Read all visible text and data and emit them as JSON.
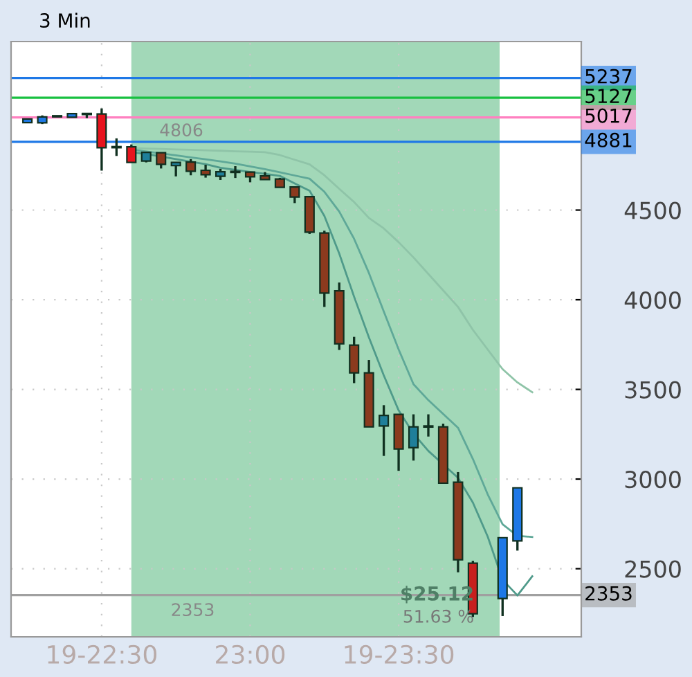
{
  "chart_data": {
    "type": "candlestick",
    "title": "3 Min",
    "categories": [
      null,
      null,
      null,
      null,
      null,
      "19-22:30",
      null,
      null,
      null,
      null,
      null,
      null,
      null,
      null,
      null,
      "23:00",
      null,
      null,
      null,
      null,
      null,
      null,
      null,
      null,
      null,
      "19-23:30",
      null,
      null,
      null,
      null,
      null,
      null,
      null,
      null,
      null
    ],
    "ohlc": [
      [
        4988,
        5010,
        4985,
        5008
      ],
      [
        4987,
        5028,
        4980,
        5020
      ],
      [
        5020,
        5027,
        5020,
        5025
      ],
      [
        5018,
        5040,
        5016,
        5038
      ],
      [
        5038,
        5040,
        5013,
        5033
      ],
      [
        5036,
        5067,
        4720,
        4848
      ],
      [
        4848,
        4900,
        4802,
        4853
      ],
      [
        4853,
        4866,
        4766,
        4766
      ],
      [
        4774,
        4822,
        4766,
        4822
      ],
      [
        4820,
        4822,
        4732,
        4755
      ],
      [
        4748,
        4768,
        4688,
        4766
      ],
      [
        4768,
        4784,
        4694,
        4717
      ],
      [
        4722,
        4753,
        4681,
        4697
      ],
      [
        4689,
        4730,
        4668,
        4714
      ],
      [
        4714,
        4745,
        4679,
        4710
      ],
      [
        4712,
        4712,
        4655,
        4686
      ],
      [
        4691,
        4712,
        4670,
        4670
      ],
      [
        4673,
        4680,
        4627,
        4627
      ],
      [
        4629,
        4629,
        4539,
        4573
      ],
      [
        4575,
        4575,
        4367,
        4377
      ],
      [
        4372,
        4385,
        3960,
        4037
      ],
      [
        4050,
        4096,
        3720,
        3754
      ],
      [
        3747,
        3793,
        3535,
        3592
      ],
      [
        3592,
        3664,
        3291,
        3291
      ],
      [
        3296,
        3412,
        3129,
        3355
      ],
      [
        3361,
        3361,
        3046,
        3168
      ],
      [
        3175,
        3361,
        3103,
        3291
      ],
      [
        3295,
        3361,
        3237,
        3290
      ],
      [
        3291,
        3309,
        2977,
        2977
      ],
      [
        2982,
        3039,
        2480,
        2550
      ],
      [
        2531,
        2544,
        2231,
        2249
      ],
      null,
      [
        2334,
        2673,
        2236,
        2673
      ],
      [
        2655,
        2951,
        2601,
        2951
      ],
      null
    ],
    "colors": [
      "#1e78e6",
      "#1e78e6",
      "#1e78e6",
      "#1e78e6",
      "#e8141e",
      "#e8141e",
      "#1e78e6",
      "#e8141e",
      "#1f7f9a",
      "#8b3a1e",
      "#1f7f9a",
      "#8b3a1e",
      "#8b3a1e",
      "#1f7f9a",
      "#b5442a",
      "#8b3a1e",
      "#8b3a1e",
      "#8b3a1e",
      "#8b3a1e",
      "#8b3a1e",
      "#8b3a1e",
      "#8b3a1e",
      "#8b3a1e",
      "#8b3a1e",
      "#1f7f9a",
      "#8b3a1e",
      "#1f7f9a",
      "#b5442a",
      "#8b3a1e",
      "#8b3a1e",
      "#c8201e",
      null,
      "#1e78e6",
      "#1e78e6",
      null
    ],
    "series": [
      {
        "type": "line",
        "color": "#8fc4a8",
        "values": [
          null,
          null,
          null,
          null,
          null,
          null,
          null,
          4846,
          4843,
          4841,
          4838,
          4836,
          4833,
          4831,
          4828,
          4826,
          4823,
          4807,
          4781,
          4755,
          4694,
          4619,
          4545,
          4456,
          4398,
          4321,
          4236,
          4144,
          4052,
          3960,
          3832,
          3722,
          3613,
          3539,
          3484
        ]
      },
      {
        "type": "line",
        "color": "#5fa898",
        "values": [
          null,
          null,
          null,
          null,
          null,
          null,
          null,
          4838,
          4827,
          4816,
          4805,
          4794,
          4783,
          4772,
          4759,
          4744,
          4728,
          4711,
          4693,
          4675,
          4602,
          4492,
          4340,
          4149,
          3934,
          3723,
          3529,
          3440,
          3363,
          3286,
          3112,
          2914,
          2748,
          2683,
          2677
        ]
      },
      {
        "type": "line",
        "color": "#4f9a8a",
        "values": [
          null,
          null,
          null,
          null,
          null,
          null,
          null,
          4822,
          4813,
          4799,
          4784,
          4770,
          4756,
          4736,
          4724,
          4713,
          4702,
          4691,
          4649,
          4608,
          4467,
          4258,
          4017,
          3790,
          3578,
          3383,
          3253,
          3157,
          3082,
          3007,
          2869,
          2679,
          2438,
          2351,
          2458
        ]
      }
    ],
    "ref_lines": [
      {
        "axis": "y",
        "value": 5237,
        "label": "5237",
        "color": "#1e78e6"
      },
      {
        "axis": "y",
        "value": 5127,
        "label": "5127",
        "color": "#18c040"
      },
      {
        "axis": "y",
        "value": 5017,
        "label": "5017",
        "color": "#ff80c0"
      },
      {
        "axis": "y",
        "value": 4881,
        "label": "4881",
        "color": "#1e78e6"
      },
      {
        "axis": "y",
        "value": 2353,
        "label": "2353",
        "color": "#a0a0a0"
      }
    ],
    "annotations": [
      {
        "text": "4806",
        "y": 4806
      },
      {
        "text": "2353",
        "y": 2353
      },
      "$25.12",
      "51.63 %"
    ],
    "ylim": [
      2120,
      5440
    ],
    "yticks": [
      2500,
      3000,
      3500,
      4000,
      4500
    ],
    "grid": true,
    "legend": false
  }
}
